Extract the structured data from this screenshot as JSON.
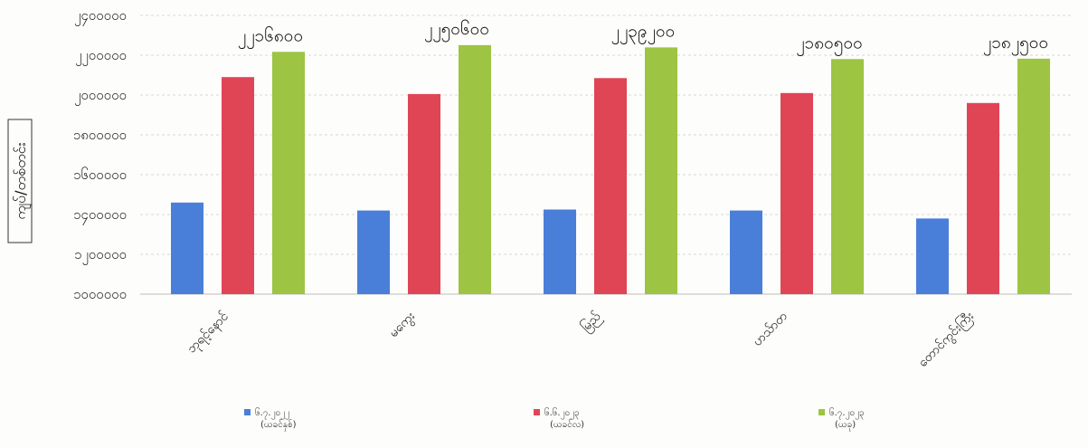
{
  "chart_data": {
    "type": "bar",
    "categories": [
      "ဘုရင့်နောင်",
      "မကွေး",
      "မြည်",
      "ဟသ်ာတ",
      "တောင်ကွင်းကြီး"
    ],
    "ylabel": "ကျပ်/တစ်တင်း",
    "yticks": [
      "၁၀၀၀၀၀၀",
      "၁၂၀၀၀၀၀",
      "၁၄၀၀၀၀၀",
      "၁၆၀၀၀၀၀",
      "၁၈၀၀၀၀၀",
      "၂၀၀၀၀၀၀",
      "၂၂၀၀၀၀၀",
      "၂၄၀၀၀၀၀"
    ],
    "ylim": [
      1000000,
      2400000
    ],
    "grid": true,
    "legend_position": "bottom",
    "series": [
      {
        "name": "၆.၇.၂၀၂၂",
        "subtitle": "(ယခင်နှစ်)",
        "color": "#4a7fd9",
        "values": [
          1460000,
          1420000,
          1425000,
          1420000,
          1380000
        ]
      },
      {
        "name": "၆.၆.၂၀၂၃",
        "subtitle": "(ယခင်လ)",
        "color": "#e04555",
        "values": [
          2090000,
          2005000,
          2085000,
          2010000,
          1960000
        ]
      },
      {
        "name": "၆.၇.၂၀၂၃",
        "subtitle": "(ယခု)",
        "color": "#9dc443",
        "values": [
          2216800,
          2250600,
          2239200,
          2180500,
          2182500
        ]
      }
    ],
    "data_labels": [
      "၂၂၁၆၈၀၀",
      "၂၂၅၀၆၀၀",
      "၂၂၃၉၂၀၀",
      "၂၁၈၀၅၀၀",
      "၂၁၈၂၅၀၀"
    ]
  }
}
